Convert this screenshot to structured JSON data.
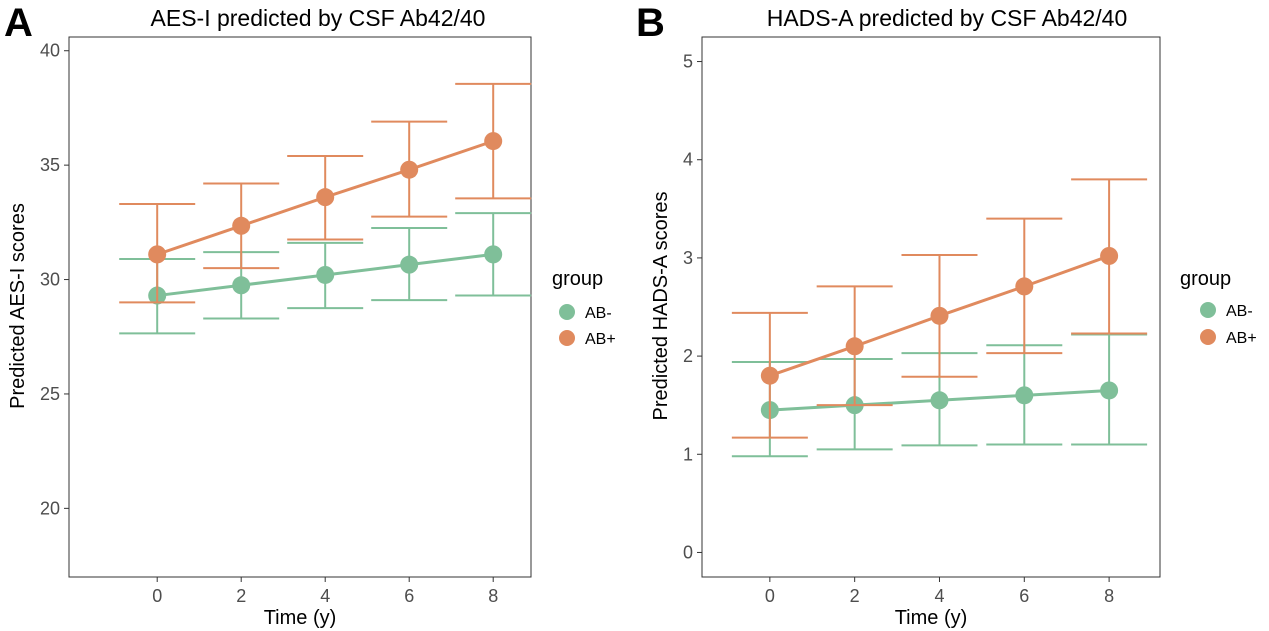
{
  "chart_data": [
    {
      "type": "line",
      "panel_label": "A",
      "title": "AES-I predicted by CSF Ab42/40",
      "xlabel": "Time (y)",
      "ylabel": "Predicted AES-I scores",
      "x": [
        0,
        2,
        4,
        6,
        8
      ],
      "x_ticks": [
        "0",
        "2",
        "4",
        "6",
        "8"
      ],
      "xlim": [
        -2.1,
        8.9
      ],
      "y_ticks": [
        "20",
        "25",
        "30",
        "35",
        "40"
      ],
      "y_tick_values": [
        20,
        25,
        30,
        35,
        40
      ],
      "ylim": [
        17.0,
        40.6
      ],
      "grid": false,
      "series": [
        {
          "name": "AB-",
          "color": "#7fbf99",
          "values": [
            29.3,
            29.75,
            30.2,
            30.65,
            31.1
          ],
          "lower": [
            27.65,
            28.3,
            28.75,
            29.1,
            29.3
          ],
          "upper": [
            30.9,
            31.2,
            31.6,
            32.25,
            32.9
          ]
        },
        {
          "name": "AB+",
          "color": "#e08a5e",
          "values": [
            31.1,
            32.35,
            33.6,
            34.8,
            36.05
          ],
          "lower": [
            29.0,
            30.5,
            31.75,
            32.75,
            33.55
          ],
          "upper": [
            33.3,
            34.2,
            35.4,
            36.9,
            38.55
          ]
        }
      ]
    },
    {
      "type": "line",
      "panel_label": "B",
      "title": "HADS-A predicted by CSF Ab42/40",
      "xlabel": "Time (y)",
      "ylabel": "Predicted HADS-A scores",
      "x": [
        0,
        2,
        4,
        6,
        8
      ],
      "x_ticks": [
        "0",
        "2",
        "4",
        "6",
        "8"
      ],
      "xlim": [
        -1.6,
        9.2
      ],
      "y_ticks": [
        "0",
        "1",
        "2",
        "3",
        "4",
        "5"
      ],
      "y_tick_values": [
        0,
        1,
        2,
        3,
        4,
        5
      ],
      "ylim": [
        -0.25,
        5.25
      ],
      "grid": false,
      "series": [
        {
          "name": "AB-",
          "color": "#7fbf99",
          "values": [
            1.45,
            1.5,
            1.55,
            1.6,
            1.65
          ],
          "lower": [
            0.98,
            1.05,
            1.09,
            1.1,
            1.1
          ],
          "upper": [
            1.94,
            1.97,
            2.03,
            2.11,
            2.22
          ]
        },
        {
          "name": "AB+",
          "color": "#e08a5e",
          "values": [
            1.8,
            2.1,
            2.41,
            2.71,
            3.02
          ],
          "lower": [
            1.17,
            1.5,
            1.79,
            2.03,
            2.23
          ],
          "upper": [
            2.44,
            2.71,
            3.03,
            3.4,
            3.8
          ]
        }
      ]
    }
  ],
  "legend": {
    "title": "group",
    "items": [
      {
        "label": "AB-",
        "color": "#7fbf99"
      },
      {
        "label": "AB+",
        "color": "#e08a5e"
      }
    ]
  }
}
